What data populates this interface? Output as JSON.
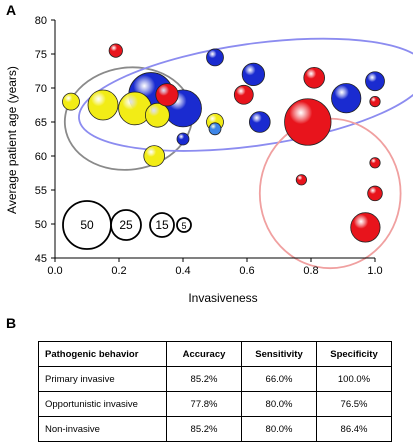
{
  "panel_a": {
    "letter": "A"
  },
  "panel_b": {
    "letter": "B"
  },
  "chart_data": {
    "type": "scatter",
    "subtype": "bubble",
    "xlabel": "Invasiveness",
    "ylabel": "Average patient age (years)",
    "xlim": [
      0.0,
      1.0
    ],
    "ylim": [
      45,
      80
    ],
    "xticks": [
      "0.0",
      "0.2",
      "0.4",
      "0.6",
      "0.8",
      "1.0"
    ],
    "yticks": [
      "45",
      "50",
      "55",
      "60",
      "65",
      "70",
      "75",
      "80"
    ],
    "grid": false,
    "colors": {
      "red": "#e8141c",
      "blue": "#1a2bd0",
      "yellow": "#f2ec16",
      "lightblue": "#3e86e8"
    },
    "size_legend": [
      "50",
      "25",
      "15",
      "5"
    ],
    "groups": [
      {
        "color": "yellow",
        "points": [
          {
            "x": 0.05,
            "y": 68,
            "size": 8
          },
          {
            "x": 0.15,
            "y": 67.5,
            "size": 25
          },
          {
            "x": 0.25,
            "y": 67,
            "size": 30
          },
          {
            "x": 0.32,
            "y": 66,
            "size": 16
          },
          {
            "x": 0.31,
            "y": 60,
            "size": 12
          },
          {
            "x": 0.5,
            "y": 65,
            "size": 8
          }
        ]
      },
      {
        "color": "blue",
        "points": [
          {
            "x": 0.3,
            "y": 69,
            "size": 55
          },
          {
            "x": 0.4,
            "y": 67,
            "size": 38
          },
          {
            "x": 0.5,
            "y": 74.5,
            "size": 8
          },
          {
            "x": 0.62,
            "y": 72,
            "size": 14
          },
          {
            "x": 0.64,
            "y": 65,
            "size": 12
          },
          {
            "x": 0.4,
            "y": 62.5,
            "size": 4
          },
          {
            "x": 0.91,
            "y": 68.5,
            "size": 24
          },
          {
            "x": 1.0,
            "y": 71,
            "size": 10
          }
        ]
      },
      {
        "color": "red",
        "points": [
          {
            "x": 0.19,
            "y": 75.5,
            "size": 5
          },
          {
            "x": 0.35,
            "y": 69,
            "size": 14
          },
          {
            "x": 0.59,
            "y": 69,
            "size": 10
          },
          {
            "x": 0.81,
            "y": 71.5,
            "size": 12
          },
          {
            "x": 0.79,
            "y": 65,
            "size": 60
          },
          {
            "x": 1.0,
            "y": 68,
            "size": 3
          },
          {
            "x": 0.77,
            "y": 56.5,
            "size": 3
          },
          {
            "x": 1.0,
            "y": 59,
            "size": 3
          },
          {
            "x": 1.0,
            "y": 54.5,
            "size": 6
          },
          {
            "x": 0.97,
            "y": 49.5,
            "size": 24
          }
        ]
      },
      {
        "color": "lightblue",
        "points": [
          {
            "x": 0.5,
            "y": 64,
            "size": 4
          }
        ]
      }
    ],
    "ellipses": [
      {
        "color": "#8a8a8a",
        "cx": 0.23,
        "cy": 65.5,
        "rx": 0.2,
        "ry": 7.5,
        "rotate": -8
      },
      {
        "color": "#8c8cf0",
        "cx": 0.62,
        "cy": 69,
        "rx": 0.55,
        "ry": 7.5,
        "rotate": -8
      },
      {
        "color": "#f0a0a0",
        "cx": 0.86,
        "cy": 54.5,
        "rx": 0.22,
        "ry": 11,
        "rotate": 0
      }
    ]
  },
  "table": {
    "headers": [
      "Pathogenic behavior",
      "Accuracy",
      "Sensitivity",
      "Specificity"
    ],
    "rows": [
      [
        "Primary invasive",
        "85.2%",
        "66.0%",
        "100.0%"
      ],
      [
        "Opportunistic invasive",
        "77.8%",
        "80.0%",
        "76.5%"
      ],
      [
        "Non-invasive",
        "85.2%",
        "80.0%",
        "86.4%"
      ]
    ]
  }
}
